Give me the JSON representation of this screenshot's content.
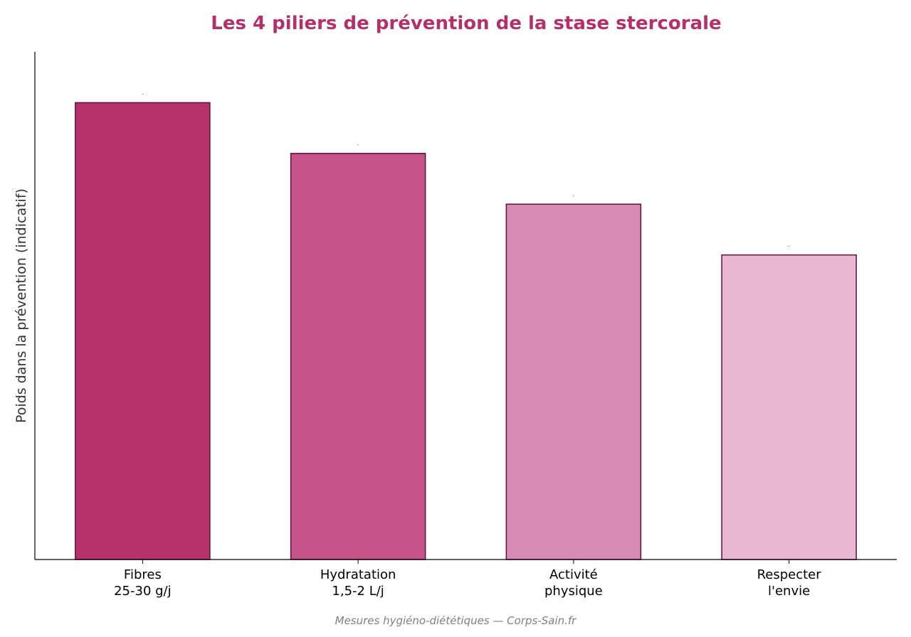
{
  "colors": {
    "title": "#B5306A",
    "bar_edge": "#5A1038",
    "axis": "#000000",
    "bars": [
      "#B5336A",
      "#C75489",
      "#D88BB2",
      "#E9B7D2"
    ]
  },
  "footer": "Mesures hygiéno-diététiques — Corps-Sain.fr",
  "chart_data": {
    "type": "bar",
    "title": "Les 4 piliers de prévention de la stase stercorale",
    "xlabel": "",
    "ylabel": "Poids dans la prévention (indicatif)",
    "categories": [
      [
        "Fibres",
        "25-30 g/j"
      ],
      [
        "Hydratation",
        "1,5-2 L/j"
      ],
      [
        "Activité",
        "physique"
      ],
      [
        "Respecter",
        "l'envie"
      ]
    ],
    "values": [
      90,
      80,
      70,
      60
    ],
    "ylim": [
      0,
      100
    ],
    "grid": false,
    "y_ticks_shown": false
  }
}
